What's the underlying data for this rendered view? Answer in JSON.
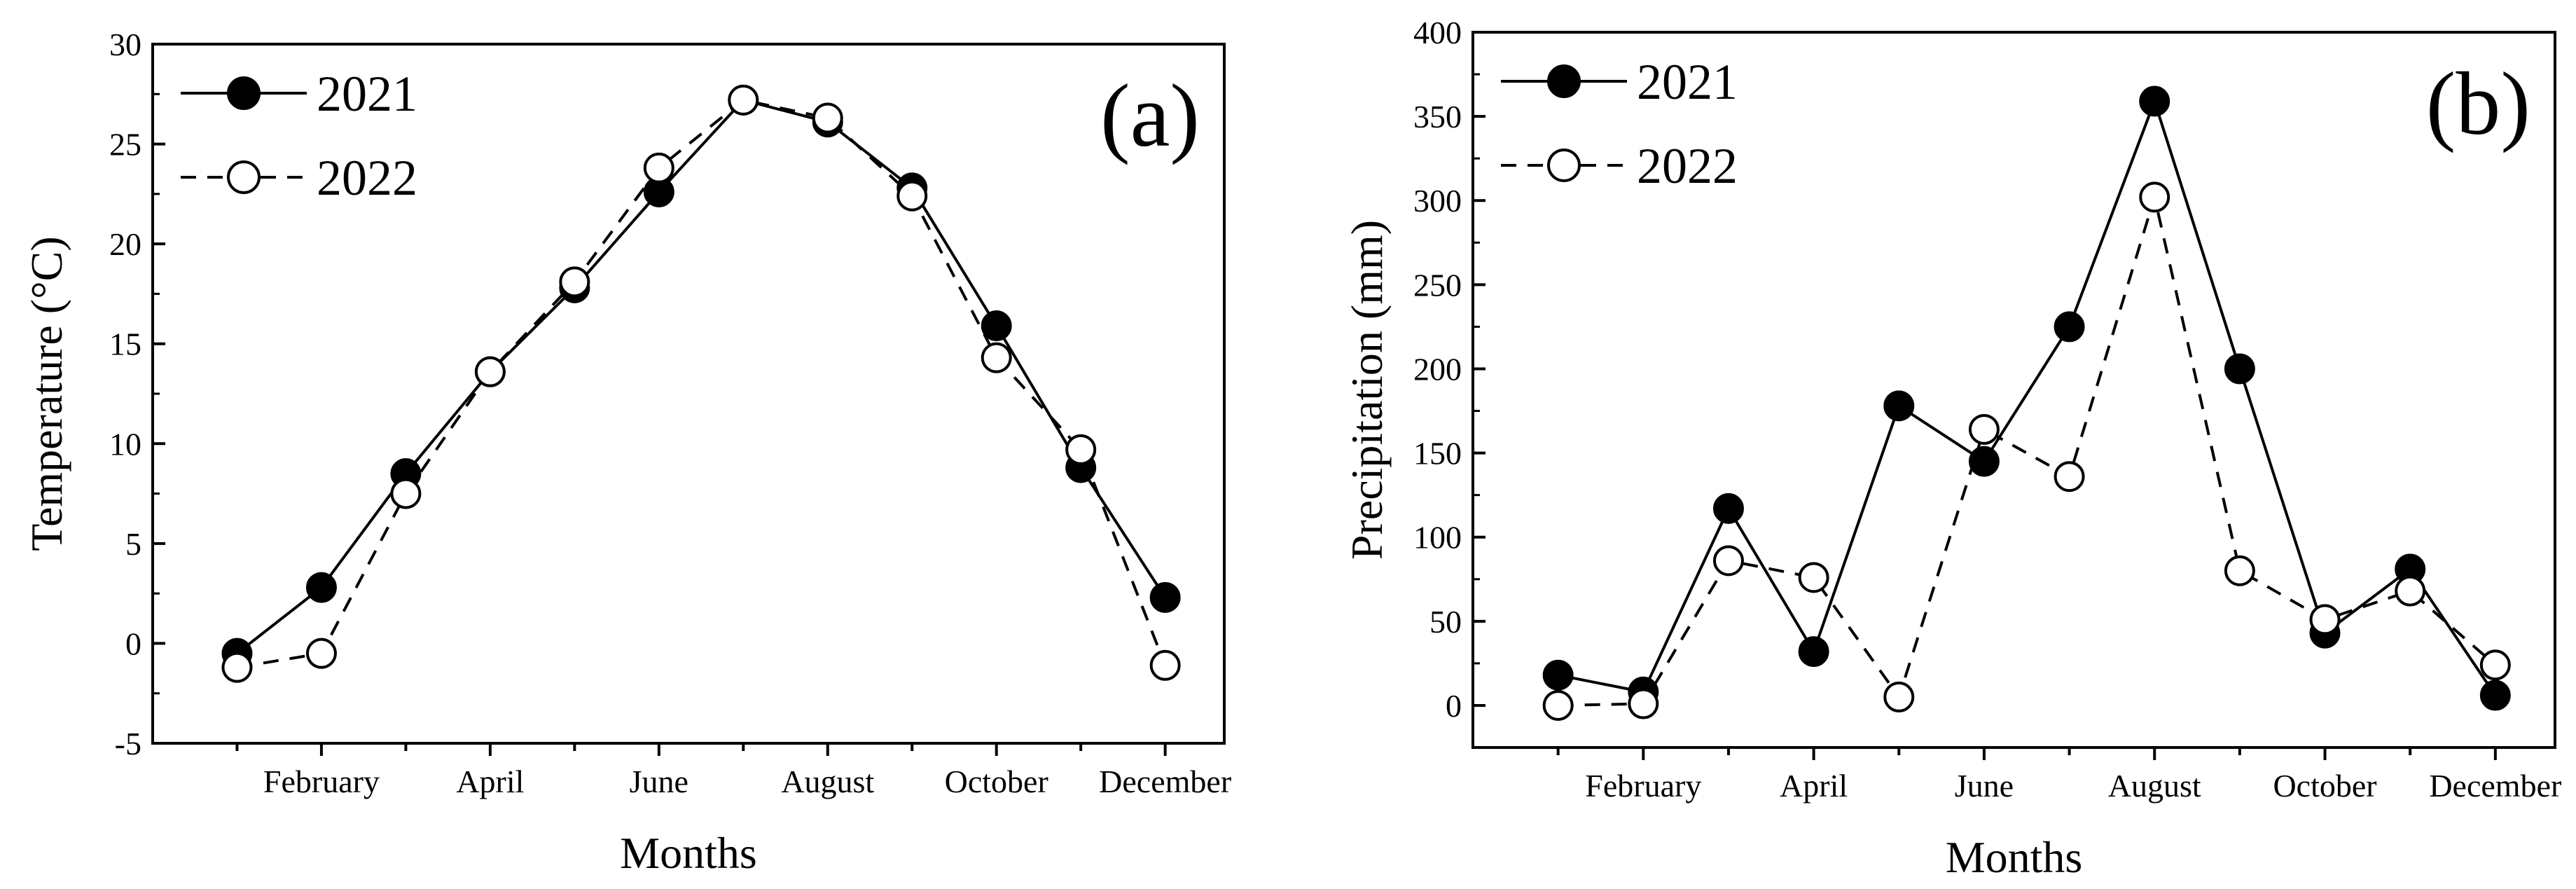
{
  "chart_data": [
    {
      "type": "line",
      "panel_label": "(a)",
      "title": "",
      "xlabel": "Months",
      "ylabel": "Temperature  (°C)",
      "ylim": [
        -5,
        30
      ],
      "yticks": [
        -5,
        0,
        5,
        10,
        15,
        20,
        25,
        30
      ],
      "x": [
        1,
        2,
        3,
        4,
        5,
        6,
        7,
        8,
        9,
        10,
        11,
        12
      ],
      "xticks": [
        2,
        4,
        6,
        8,
        10,
        12
      ],
      "xticklabels": [
        "February",
        "April",
        "June",
        "August",
        "October",
        "December"
      ],
      "legend_position": "top-left",
      "series": [
        {
          "name": "2021",
          "style": "solid",
          "marker": "filled-circle",
          "values": [
            -0.5,
            2.8,
            8.5,
            13.6,
            17.8,
            22.6,
            27.2,
            26.1,
            22.8,
            15.9,
            8.8,
            2.3
          ]
        },
        {
          "name": "2022",
          "style": "dashed",
          "marker": "open-circle",
          "values": [
            -1.2,
            -0.5,
            7.5,
            13.6,
            18.1,
            23.8,
            27.2,
            26.3,
            22.4,
            14.3,
            9.7,
            -1.1
          ]
        }
      ]
    },
    {
      "type": "line",
      "panel_label": "(b)",
      "title": "",
      "xlabel": "Months",
      "ylabel": "Precipitation (mm)",
      "ylim": [
        -25,
        400
      ],
      "yticks": [
        0,
        50,
        100,
        150,
        200,
        250,
        300,
        350,
        400
      ],
      "x": [
        1,
        2,
        3,
        4,
        5,
        6,
        7,
        8,
        9,
        10,
        11,
        12
      ],
      "xticks": [
        2,
        4,
        6,
        8,
        10,
        12
      ],
      "xticklabels": [
        "February",
        "April",
        "June",
        "August",
        "October",
        "December"
      ],
      "legend_position": "top-left",
      "series": [
        {
          "name": "2021",
          "style": "solid",
          "marker": "filled-circle",
          "values": [
            18,
            8,
            117,
            32,
            178,
            145,
            225,
            359,
            200,
            43,
            81,
            6
          ]
        },
        {
          "name": "2022",
          "style": "dashed",
          "marker": "open-circle",
          "values": [
            0,
            1,
            86,
            76,
            5,
            164,
            136,
            302,
            80,
            51,
            68,
            24
          ]
        }
      ]
    }
  ]
}
